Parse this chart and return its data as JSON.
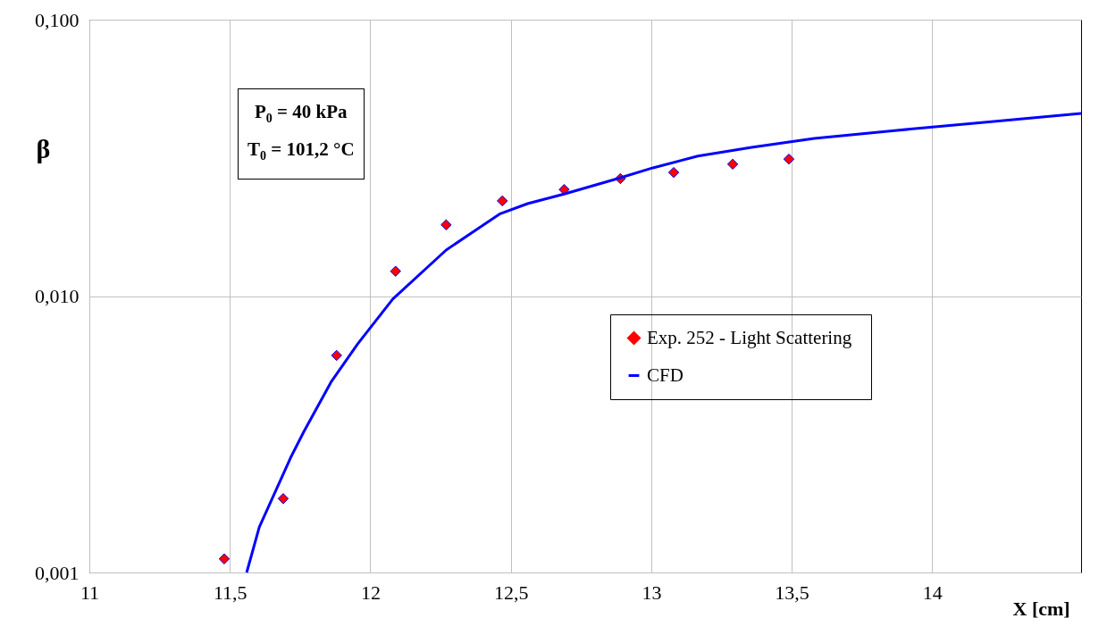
{
  "chart_data": {
    "type": "scatter",
    "xlabel": "X [cm]",
    "ylabel": "β",
    "annotations": [
      "P$_{0}$ = 40 kPa",
      "T$_{0}$ = 101,2 °C"
    ],
    "series": [
      {
        "name": "Exp. 252 -  Light Scattering",
        "color": "#ff0000",
        "marker": "diamond",
        "x": [
          11.48,
          11.69,
          11.88,
          12.09,
          12.27,
          12.47,
          12.69,
          12.89,
          13.08,
          13.29,
          13.49
        ],
        "values": [
          0.00112,
          0.00185,
          0.0061,
          0.0123,
          0.0181,
          0.0221,
          0.0243,
          0.0266,
          0.028,
          0.03,
          0.0313
        ]
      },
      {
        "name": "CFD",
        "type": "line",
        "color": "#0000ff",
        "marker": "none",
        "x": [
          11.56,
          11.605,
          11.717,
          11.764,
          11.86,
          11.955,
          12.08,
          12.27,
          12.46,
          12.56,
          12.69,
          12.88,
          13.006,
          13.166,
          13.357,
          13.58,
          13.866,
          14.15,
          14.53
        ],
        "values": [
          0.001,
          0.00146,
          0.00261,
          0.00324,
          0.00488,
          0.00671,
          0.00975,
          0.01467,
          0.0198,
          0.0216,
          0.0234,
          0.0266,
          0.0291,
          0.0321,
          0.0345,
          0.0372,
          0.0397,
          0.0422,
          0.0458
        ]
      }
    ],
    "xlim": [
      11,
      14.53
    ],
    "xticks": [
      11,
      {
        "value": 11.5,
        "label": "11,5"
      },
      12,
      {
        "value": 12.5,
        "label": "12,5"
      },
      13,
      {
        "value": 13.5,
        "label": "13,5"
      },
      14
    ],
    "ylim": [
      0.001,
      0.1
    ],
    "yticks": [
      {
        "value": 0.001,
        "label": "0,001"
      },
      {
        "value": 0.01,
        "label": "0,010"
      },
      {
        "value": 0.1,
        "label": "0,100"
      }
    ],
    "log": true,
    "grid": true,
    "legend": "right"
  }
}
